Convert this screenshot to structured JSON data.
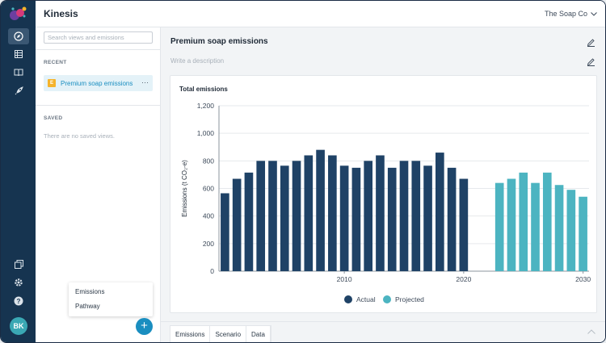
{
  "app": {
    "title": "Kinesis",
    "org": "The Soap Co"
  },
  "rail": {
    "items": [
      {
        "name": "explore-icon",
        "active": true
      },
      {
        "name": "table-icon",
        "active": false
      },
      {
        "name": "book-icon",
        "active": false
      },
      {
        "name": "rocket-icon",
        "active": false
      },
      {
        "name": "layers-icon",
        "active": false
      },
      {
        "name": "gear-icon",
        "active": false
      },
      {
        "name": "help-icon",
        "active": false
      }
    ],
    "avatar": "BK"
  },
  "sidebar": {
    "search_placeholder": "Search views and emissions",
    "recent_label": "RECENT",
    "recent_items": [
      {
        "badge": "E",
        "label": "Premium soap emissions",
        "more": "···"
      }
    ],
    "saved_label": "SAVED",
    "saved_empty": "There are no saved views.",
    "menu": [
      "Emissions",
      "Pathway"
    ],
    "add_label": "+"
  },
  "main": {
    "title": "Premium soap emissions",
    "description_placeholder": "Write a description",
    "card_title": "Total emissions",
    "tabs": [
      "Emissions",
      "Scenario",
      "Data"
    ]
  },
  "colors": {
    "actual": "#1f4266",
    "projected": "#4cb4c1",
    "accent": "#1a8ec0",
    "rail": "#163450"
  },
  "chart_data": {
    "type": "bar",
    "title": "Total emissions",
    "xlabel": "",
    "ylabel": "Emissions (t CO₂-e)",
    "ylim": [
      0,
      1200
    ],
    "yticks": [
      0,
      200,
      400,
      600,
      800,
      1000,
      1200
    ],
    "xticks": [
      2010,
      2020,
      2030
    ],
    "grid": true,
    "legend": "bottom",
    "series": [
      {
        "name": "Actual",
        "x": [
          2000,
          2001,
          2002,
          2003,
          2004,
          2005,
          2006,
          2007,
          2008,
          2009,
          2010,
          2011,
          2012,
          2013,
          2014,
          2015,
          2016,
          2017,
          2018,
          2019,
          2020,
          2021,
          2022
        ],
        "values": [
          565,
          670,
          715,
          800,
          800,
          765,
          800,
          840,
          880,
          840,
          765,
          750,
          800,
          840,
          750,
          800,
          800,
          765,
          860,
          750,
          670,
          0,
          0
        ]
      },
      {
        "name": "Projected",
        "x": [
          2023,
          2024,
          2025,
          2026,
          2027,
          2028,
          2029,
          2030
        ],
        "values": [
          640,
          670,
          715,
          640,
          715,
          625,
          590,
          540
        ]
      }
    ]
  }
}
